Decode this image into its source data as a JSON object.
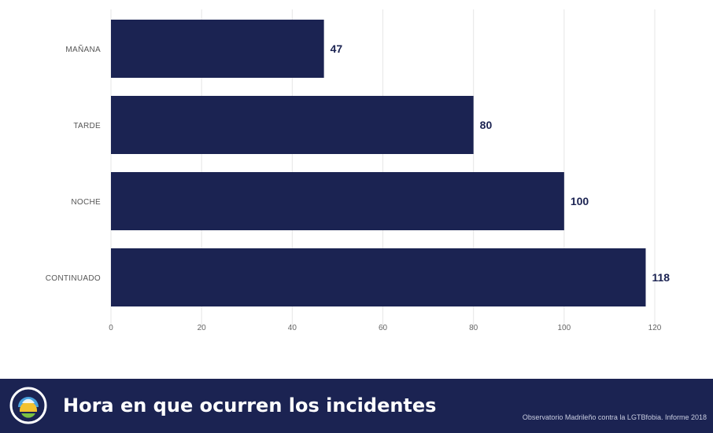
{
  "chart_data": {
    "type": "bar",
    "orientation": "horizontal",
    "categories": [
      "MAÑANA",
      "TARDE",
      "NOCHE",
      "CONTINUADO"
    ],
    "values": [
      47,
      80,
      100,
      118
    ],
    "xticks": [
      0,
      20,
      40,
      60,
      80,
      100,
      120
    ],
    "xlim": [
      0,
      120
    ],
    "grid": true,
    "bar_color": "#1b2352"
  },
  "footer": {
    "title": "Hora en que ocurren los incidentes",
    "source": "Observatorio Madrileño contra la LGTBfobia. Informe 2018",
    "logo_icon": "observatory-logo-icon"
  },
  "colors": {
    "navy": "#1b2352",
    "grid": "#e6e6e6"
  }
}
